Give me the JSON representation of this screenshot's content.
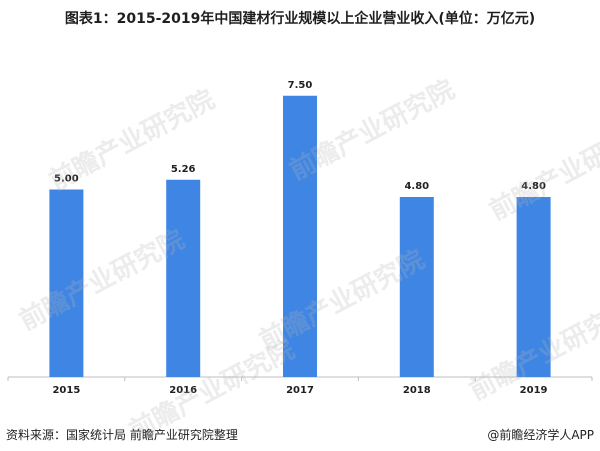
{
  "title": "图表1：2015-2019年中国建材行业规模以上企业营业收入(单位：万亿元)",
  "watermark": "前瞻产业研究院",
  "source": "资料来源：国家统计局 前瞻产业研究院整理",
  "credit": "@前瞻经济学人APP",
  "colors": {
    "bar": "#3f86e4",
    "axis": "#bfbfbf",
    "text": "#1f1f1f"
  },
  "chart_data": {
    "type": "bar",
    "categories": [
      "2015",
      "2016",
      "2017",
      "2018",
      "2019"
    ],
    "values": [
      5.0,
      5.26,
      7.5,
      4.8,
      4.8
    ],
    "value_labels": [
      "5.00",
      "5.26",
      "7.50",
      "4.80",
      "4.80"
    ],
    "ylim": [
      0,
      8
    ],
    "grid": false,
    "legend": "none"
  }
}
